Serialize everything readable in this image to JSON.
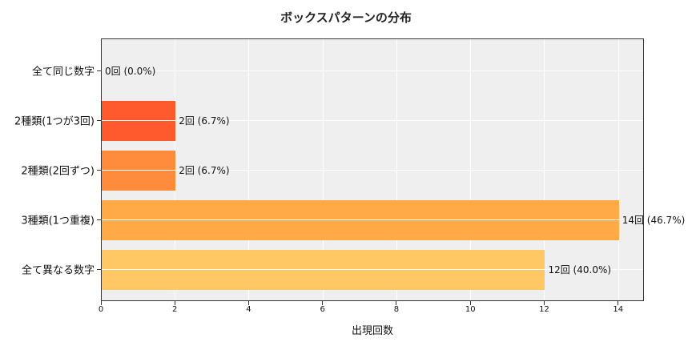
{
  "chart_data": {
    "type": "bar",
    "orientation": "horizontal",
    "title": "ボックスパターンの分布",
    "xlabel": "出現回数",
    "ylabel": "",
    "categories": [
      "全て同じ数字",
      "2種類(1つが3回)",
      "2種類(2回ずつ)",
      "3種類(1つ重複)",
      "全て異なる数字"
    ],
    "values": [
      0,
      2,
      2,
      14,
      12
    ],
    "percentages": [
      0.0,
      6.7,
      6.7,
      46.7,
      40.0
    ],
    "bar_labels": [
      "0回 (0.0%)",
      "2回 (6.7%)",
      "2回 (6.7%)",
      "14回 (46.7%)",
      "12回 (40.0%)"
    ],
    "colors": [
      "#FF5A2E",
      "#FF5A2E",
      "#FF8C3C",
      "#FFAA46",
      "#FFC864"
    ],
    "xlim": [
      0,
      14.7
    ],
    "xticks": [
      0,
      2,
      4,
      6,
      8,
      10,
      12,
      14
    ],
    "grid": true,
    "legend": null
  },
  "title": "ボックスパターンの分布",
  "xlabel": "出現回数",
  "rows": [
    {
      "label": "全て同じ数字",
      "value": 0,
      "text": "0回 (0.0%)",
      "color": "#FF5A2E"
    },
    {
      "label": "2種類(1つが3回)",
      "value": 2,
      "text": "2回 (6.7%)",
      "color": "#FF5A2E"
    },
    {
      "label": "2種類(2回ずつ)",
      "value": 2,
      "text": "2回 (6.7%)",
      "color": "#FF8C3C"
    },
    {
      "label": "3種類(1つ重複)",
      "value": 14,
      "text": "14回 (46.7%)",
      "color": "#FFAA46"
    },
    {
      "label": "全て異なる数字",
      "value": 12,
      "text": "12回 (40.0%)",
      "color": "#FFC864"
    }
  ],
  "xticks": [
    "0",
    "2",
    "4",
    "6",
    "8",
    "10",
    "12",
    "14"
  ]
}
